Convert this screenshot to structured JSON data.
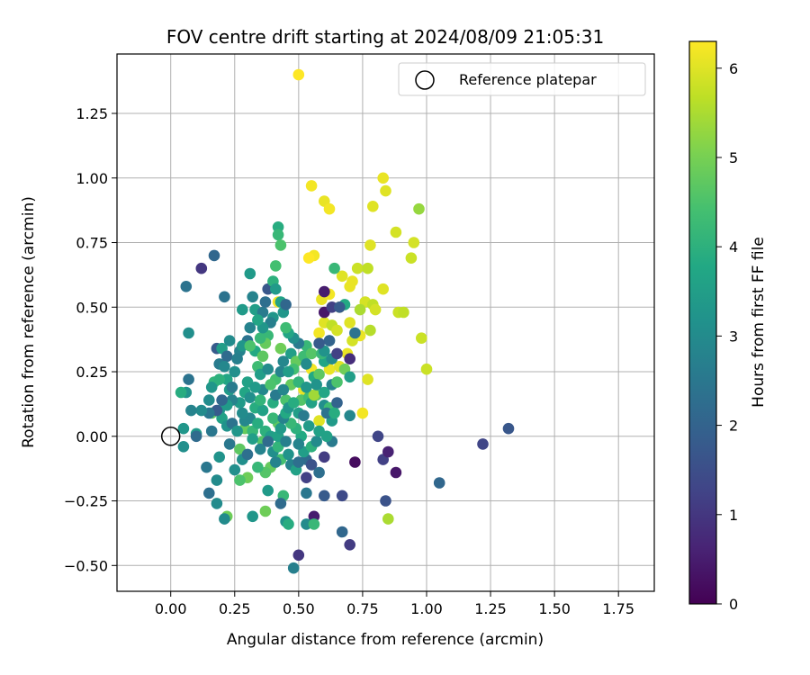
{
  "chart_data": {
    "type": "scatter",
    "title": "FOV centre drift starting at 2024/08/09 21:05:31",
    "xlabel": "Angular distance from reference (arcmin)",
    "ylabel": "Rotation from reference (arcmin)",
    "xlim": [
      -0.21,
      1.89
    ],
    "ylim": [
      -0.6,
      1.48
    ],
    "xticks": [
      0.0,
      0.25,
      0.5,
      0.75,
      1.0,
      1.25,
      1.5,
      1.75
    ],
    "xtick_labels": [
      "0.00",
      "0.25",
      "0.50",
      "0.75",
      "1.00",
      "1.25",
      "1.50",
      "1.75"
    ],
    "yticks": [
      -0.5,
      -0.25,
      0.0,
      0.25,
      0.5,
      0.75,
      1.0,
      1.25
    ],
    "ytick_labels": [
      "−0.50",
      "−0.25",
      "0.00",
      "0.25",
      "0.50",
      "0.75",
      "1.00",
      "1.25"
    ],
    "grid": true,
    "legend": {
      "placement": "top-right",
      "label": "Reference platepar",
      "marker": "open-circle"
    },
    "reference_point": {
      "x": 0.0,
      "y": 0.0
    },
    "colorbar": {
      "label": "Hours from first FF file",
      "colormap": "viridis",
      "range": [
        0,
        6.3
      ],
      "ticks": [
        0,
        1,
        2,
        3,
        4,
        5,
        6
      ],
      "tick_labels": [
        "0",
        "1",
        "2",
        "3",
        "4",
        "5",
        "6"
      ]
    },
    "points": [
      [
        0.5,
        1.4,
        6.3
      ],
      [
        0.55,
        0.97,
        6.2
      ],
      [
        0.6,
        0.91,
        6.1
      ],
      [
        0.62,
        0.88,
        6.2
      ],
      [
        0.83,
        1.0,
        6.1
      ],
      [
        0.84,
        0.95,
        6.0
      ],
      [
        0.97,
        0.88,
        5.3
      ],
      [
        0.79,
        0.89,
        6.0
      ],
      [
        0.88,
        0.79,
        5.9
      ],
      [
        0.95,
        0.75,
        5.9
      ],
      [
        0.78,
        0.74,
        6.0
      ],
      [
        0.94,
        0.69,
        5.8
      ],
      [
        0.56,
        0.7,
        6.2
      ],
      [
        0.54,
        0.69,
        6.3
      ],
      [
        0.67,
        0.62,
        6.0
      ],
      [
        0.71,
        0.6,
        6.1
      ],
      [
        0.73,
        0.65,
        5.8
      ],
      [
        0.77,
        0.65,
        5.7
      ],
      [
        0.7,
        0.58,
        6.1
      ],
      [
        0.83,
        0.57,
        6.0
      ],
      [
        0.59,
        0.53,
        6.1
      ],
      [
        0.62,
        0.55,
        6.2
      ],
      [
        0.76,
        0.52,
        5.9
      ],
      [
        0.79,
        0.51,
        5.7
      ],
      [
        0.89,
        0.48,
        5.8
      ],
      [
        0.91,
        0.48,
        5.7
      ],
      [
        0.74,
        0.49,
        5.5
      ],
      [
        0.8,
        0.49,
        5.9
      ],
      [
        0.7,
        0.44,
        6.0
      ],
      [
        0.74,
        0.39,
        6.1
      ],
      [
        0.78,
        0.41,
        5.6
      ],
      [
        0.71,
        0.37,
        5.9
      ],
      [
        0.98,
        0.38,
        5.8
      ],
      [
        1.0,
        0.26,
        5.8
      ],
      [
        0.69,
        0.32,
        6.1
      ],
      [
        0.77,
        0.22,
        6.0
      ],
      [
        0.55,
        0.26,
        6.2
      ],
      [
        0.62,
        0.26,
        6.1
      ],
      [
        0.66,
        0.27,
        6.0
      ],
      [
        0.6,
        0.44,
        6.0
      ],
      [
        0.58,
        0.4,
        6.2
      ],
      [
        0.52,
        0.18,
        6.1
      ],
      [
        0.75,
        0.09,
        6.2
      ],
      [
        0.58,
        0.06,
        6.0
      ],
      [
        0.85,
        -0.32,
        5.5
      ],
      [
        0.42,
        0.52,
        6.2
      ],
      [
        0.63,
        0.43,
        5.7
      ],
      [
        0.65,
        0.41,
        5.9
      ],
      [
        0.66,
        0.5,
        5.6
      ],
      [
        0.64,
        0.65,
        4.2
      ],
      [
        0.68,
        0.51,
        3.8
      ],
      [
        0.62,
        0.37,
        4.3
      ],
      [
        0.6,
        0.29,
        3.7
      ],
      [
        0.57,
        0.16,
        4.6
      ],
      [
        0.47,
        0.32,
        3.5
      ],
      [
        0.49,
        0.29,
        4.8
      ],
      [
        0.43,
        0.34,
        4.9
      ],
      [
        0.48,
        0.26,
        4.4
      ],
      [
        0.51,
        0.14,
        4.6
      ],
      [
        0.45,
        0.14,
        4.5
      ],
      [
        0.42,
        0.05,
        4.7
      ],
      [
        0.4,
        0.07,
        4.2
      ],
      [
        0.36,
        -0.02,
        4.6
      ],
      [
        0.33,
        0.11,
        3.9
      ],
      [
        0.39,
        -0.12,
        4.8
      ],
      [
        0.43,
        -0.09,
        4.4
      ],
      [
        0.44,
        -0.23,
        4.2
      ],
      [
        0.37,
        -0.29,
        4.9
      ],
      [
        0.32,
        -0.31,
        3.3
      ],
      [
        0.3,
        -0.16,
        4.9
      ],
      [
        0.27,
        -0.17,
        4.5
      ],
      [
        0.25,
        -0.13,
        3.1
      ],
      [
        0.27,
        -0.05,
        4.7
      ],
      [
        0.29,
        0.03,
        4.8
      ],
      [
        0.32,
        0.02,
        4.2
      ],
      [
        0.22,
        -0.31,
        4.9
      ],
      [
        0.21,
        -0.32,
        3.0
      ],
      [
        0.18,
        -0.26,
        3.0
      ],
      [
        0.18,
        -0.17,
        3.0
      ],
      [
        0.15,
        -0.22,
        2.3
      ],
      [
        0.19,
        -0.08,
        3.2
      ],
      [
        0.16,
        0.02,
        2.5
      ],
      [
        0.14,
        -0.12,
        2.5
      ],
      [
        0.1,
        0.01,
        3.4
      ],
      [
        0.05,
        -0.04,
        3.1
      ],
      [
        0.05,
        0.03,
        3.3
      ],
      [
        0.06,
        0.17,
        3.2
      ],
      [
        0.04,
        0.17,
        3.9
      ],
      [
        0.07,
        0.22,
        2.4
      ],
      [
        0.07,
        0.4,
        3.1
      ],
      [
        0.06,
        0.58,
        2.4
      ],
      [
        0.12,
        0.65,
        1.0
      ],
      [
        0.17,
        0.7,
        2.1
      ],
      [
        0.21,
        0.54,
        2.4
      ],
      [
        0.18,
        0.34,
        1.8
      ],
      [
        0.19,
        0.28,
        2.6
      ],
      [
        0.2,
        0.34,
        3.5
      ],
      [
        0.22,
        0.31,
        2.2
      ],
      [
        0.23,
        0.37,
        3.0
      ],
      [
        0.27,
        0.33,
        2.8
      ],
      [
        0.3,
        0.37,
        2.4
      ],
      [
        0.32,
        0.54,
        2.8
      ],
      [
        0.31,
        0.63,
        3.4
      ],
      [
        0.28,
        0.49,
        3.4
      ],
      [
        0.33,
        0.49,
        3.5
      ],
      [
        0.36,
        0.48,
        2.6
      ],
      [
        0.37,
        0.52,
        2.3
      ],
      [
        0.38,
        0.57,
        1.7
      ],
      [
        0.4,
        0.6,
        4.0
      ],
      [
        0.42,
        0.81,
        3.9
      ],
      [
        0.42,
        0.78,
        4.2
      ],
      [
        0.43,
        0.74,
        4.5
      ],
      [
        0.41,
        0.66,
        4.4
      ],
      [
        0.41,
        0.57,
        3.4
      ],
      [
        0.43,
        0.52,
        3.6
      ],
      [
        0.44,
        0.48,
        3.3
      ],
      [
        0.45,
        0.51,
        2.1
      ],
      [
        0.4,
        0.46,
        3.3
      ],
      [
        0.38,
        0.39,
        4.2
      ],
      [
        0.37,
        0.36,
        4.8
      ],
      [
        0.35,
        0.38,
        4.2
      ],
      [
        0.33,
        0.33,
        3.8
      ],
      [
        0.34,
        0.27,
        4.3
      ],
      [
        0.35,
        0.24,
        3.5
      ],
      [
        0.38,
        0.26,
        3.0
      ],
      [
        0.36,
        0.18,
        2.9
      ],
      [
        0.36,
        0.1,
        3.6
      ],
      [
        0.4,
        0.13,
        3.9
      ],
      [
        0.41,
        0.22,
        4.4
      ],
      [
        0.43,
        0.25,
        2.8
      ],
      [
        0.44,
        0.29,
        2.9
      ],
      [
        0.46,
        0.25,
        3.5
      ],
      [
        0.47,
        0.2,
        4.8
      ],
      [
        0.5,
        0.21,
        4.1
      ],
      [
        0.52,
        0.31,
        4.3
      ],
      [
        0.53,
        0.35,
        4.2
      ],
      [
        0.55,
        0.32,
        4.6
      ],
      [
        0.53,
        0.28,
        3.0
      ],
      [
        0.56,
        0.23,
        3.8
      ],
      [
        0.54,
        0.15,
        4.3
      ],
      [
        0.55,
        0.13,
        3.6
      ],
      [
        0.56,
        0.16,
        5.4
      ],
      [
        0.58,
        0.24,
        4.7
      ],
      [
        0.59,
        0.32,
        4.2
      ],
      [
        0.6,
        0.33,
        3.2
      ],
      [
        0.63,
        0.3,
        3.0
      ],
      [
        0.6,
        0.17,
        3.7
      ],
      [
        0.6,
        0.12,
        3.1
      ],
      [
        0.62,
        0.11,
        4.3
      ],
      [
        0.63,
        0.06,
        3.4
      ],
      [
        0.63,
        -0.02,
        2.6
      ],
      [
        0.6,
        -0.08,
        1.1
      ],
      [
        0.53,
        -0.09,
        2.2
      ],
      [
        0.52,
        -0.06,
        3.5
      ],
      [
        0.51,
        0.0,
        3.8
      ],
      [
        0.5,
        -0.03,
        2.8
      ],
      [
        0.49,
        0.03,
        4.0
      ],
      [
        0.47,
        0.05,
        4.2
      ],
      [
        0.46,
        -0.07,
        3.2
      ],
      [
        0.47,
        -0.11,
        2.8
      ],
      [
        0.49,
        -0.13,
        3.6
      ],
      [
        0.53,
        -0.16,
        1.2
      ],
      [
        0.55,
        -0.11,
        1.6
      ],
      [
        0.58,
        -0.14,
        2.3
      ],
      [
        0.6,
        -0.23,
        1.8
      ],
      [
        0.56,
        -0.31,
        0.5
      ],
      [
        0.53,
        -0.34,
        3.0
      ],
      [
        0.56,
        -0.34,
        4.2
      ],
      [
        0.5,
        -0.46,
        1.0
      ],
      [
        0.48,
        -0.51,
        2.7
      ],
      [
        0.43,
        -0.26,
        2.2
      ],
      [
        0.45,
        -0.33,
        3.2
      ],
      [
        0.46,
        -0.34,
        3.9
      ],
      [
        0.38,
        -0.21,
        3.4
      ],
      [
        0.37,
        -0.14,
        4.6
      ],
      [
        0.34,
        -0.12,
        4.2
      ],
      [
        0.32,
        -0.01,
        3.5
      ],
      [
        0.31,
        0.07,
        2.9
      ],
      [
        0.27,
        0.13,
        3.4
      ],
      [
        0.29,
        0.06,
        2.9
      ],
      [
        0.24,
        0.14,
        2.8
      ],
      [
        0.23,
        0.18,
        3.4
      ],
      [
        0.22,
        0.22,
        3.7
      ],
      [
        0.21,
        0.27,
        2.9
      ],
      [
        0.17,
        0.21,
        4.1
      ],
      [
        0.16,
        0.19,
        3.3
      ],
      [
        0.19,
        0.22,
        4.0
      ],
      [
        0.15,
        0.14,
        3.0
      ],
      [
        0.16,
        0.09,
        4.7
      ],
      [
        0.19,
        0.1,
        3.2
      ],
      [
        0.2,
        0.07,
        3.6
      ],
      [
        0.22,
        0.04,
        3.2
      ],
      [
        0.24,
        0.05,
        2.4
      ],
      [
        0.26,
        0.02,
        3.3
      ],
      [
        0.28,
        0.09,
        3.0
      ],
      [
        0.29,
        0.17,
        3.7
      ],
      [
        0.3,
        0.21,
        3.6
      ],
      [
        0.31,
        0.15,
        3.1
      ],
      [
        0.33,
        0.19,
        3.4
      ],
      [
        0.35,
        0.14,
        4.1
      ],
      [
        0.34,
        0.05,
        3.9
      ],
      [
        0.37,
        0.02,
        4.0
      ],
      [
        0.39,
        0.0,
        3.5
      ],
      [
        0.4,
        -0.06,
        3.1
      ],
      [
        0.41,
        -0.1,
        2.8
      ],
      [
        0.42,
        -0.04,
        4.1
      ],
      [
        0.42,
        0.0,
        3.6
      ],
      [
        0.43,
        0.03,
        3.4
      ],
      [
        0.44,
        0.07,
        2.8
      ],
      [
        0.45,
        0.09,
        3.8
      ],
      [
        0.46,
        0.11,
        3.3
      ],
      [
        0.48,
        0.13,
        3.9
      ],
      [
        0.5,
        0.09,
        3.5
      ],
      [
        0.52,
        0.08,
        2.6
      ],
      [
        0.54,
        0.04,
        3.4
      ],
      [
        0.55,
        -0.04,
        4.0
      ],
      [
        0.57,
        -0.02,
        3.0
      ],
      [
        0.58,
        0.02,
        3.6
      ],
      [
        0.61,
        0.09,
        2.4
      ],
      [
        0.65,
        0.13,
        2.0
      ],
      [
        0.7,
        0.08,
        2.9
      ],
      [
        0.72,
        -0.1,
        0.2
      ],
      [
        0.67,
        -0.23,
        1.4
      ],
      [
        0.67,
        -0.37,
        2.1
      ],
      [
        0.7,
        -0.42,
        1.1
      ],
      [
        0.84,
        -0.25,
        1.6
      ],
      [
        0.83,
        -0.09,
        1.2
      ],
      [
        0.85,
        -0.06,
        0.6
      ],
      [
        0.88,
        -0.14,
        0.4
      ],
      [
        0.81,
        0.0,
        1.3
      ],
      [
        1.05,
        -0.18,
        2.1
      ],
      [
        1.22,
        -0.03,
        1.3
      ],
      [
        1.32,
        0.03,
        1.7
      ],
      [
        0.7,
        0.3,
        0.8
      ],
      [
        0.65,
        0.32,
        1.2
      ],
      [
        0.62,
        0.37,
        2.0
      ],
      [
        0.6,
        0.48,
        0.4
      ],
      [
        0.6,
        0.56,
        0.5
      ],
      [
        0.63,
        0.5,
        1.2
      ],
      [
        0.66,
        0.5,
        1.8
      ],
      [
        0.72,
        0.4,
        2.4
      ],
      [
        0.58,
        0.36,
        1.8
      ],
      [
        0.5,
        0.36,
        2.6
      ],
      [
        0.48,
        0.38,
        3.1
      ],
      [
        0.46,
        0.4,
        3.7
      ],
      [
        0.45,
        0.42,
        4.3
      ],
      [
        0.39,
        0.44,
        2.7
      ],
      [
        0.36,
        0.42,
        3.3
      ],
      [
        0.34,
        0.45,
        3.7
      ],
      [
        0.31,
        0.42,
        2.8
      ],
      [
        0.28,
        0.35,
        3.3
      ],
      [
        0.26,
        0.3,
        2.7
      ],
      [
        0.25,
        0.25,
        3.1
      ],
      [
        0.24,
        0.19,
        2.6
      ],
      [
        0.22,
        0.12,
        3.4
      ],
      [
        0.2,
        0.14,
        2.1
      ],
      [
        0.18,
        0.1,
        1.8
      ],
      [
        0.15,
        0.09,
        2.5
      ],
      [
        0.12,
        0.1,
        3.0
      ],
      [
        0.08,
        0.1,
        2.8
      ],
      [
        0.1,
        0.0,
        2.2
      ],
      [
        0.23,
        -0.03,
        2.5
      ],
      [
        0.28,
        -0.09,
        3.1
      ],
      [
        0.3,
        -0.07,
        2.3
      ],
      [
        0.35,
        -0.05,
        2.8
      ],
      [
        0.38,
        -0.02,
        2.2
      ],
      [
        0.45,
        -0.02,
        2.7
      ],
      [
        0.5,
        -0.1,
        2.3
      ],
      [
        0.53,
        -0.22,
        2.5
      ],
      [
        0.31,
        0.35,
        4.5
      ],
      [
        0.36,
        0.31,
        4.7
      ],
      [
        0.39,
        0.2,
        4.5
      ],
      [
        0.41,
        0.16,
        2.6
      ],
      [
        0.44,
        0.18,
        2.9
      ],
      [
        0.53,
        0.19,
        3.3
      ],
      [
        0.57,
        0.2,
        3.2
      ],
      [
        0.63,
        0.2,
        2.8
      ],
      [
        0.65,
        0.21,
        4.5
      ],
      [
        0.68,
        0.26,
        4.9
      ],
      [
        0.7,
        0.23,
        3.5
      ],
      [
        0.64,
        0.09,
        3.9
      ],
      [
        0.61,
        0.0,
        3.6
      ]
    ]
  }
}
